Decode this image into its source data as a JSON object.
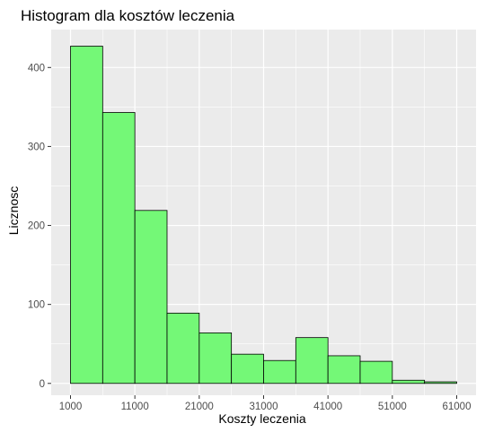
{
  "chart_data": {
    "type": "bar",
    "title": "Histogram dla kosztów leczenia",
    "xlabel": "Koszty leczenia",
    "ylabel": "Licznosc",
    "xlim": [
      -2000,
      64000
    ],
    "ylim": [
      -15,
      448
    ],
    "x_ticks": [
      1000,
      11000,
      21000,
      31000,
      41000,
      51000,
      61000
    ],
    "x_minor_ticks": [
      6000,
      16000,
      26000,
      36000,
      46000,
      56000
    ],
    "y_ticks": [
      0,
      100,
      200,
      300,
      400
    ],
    "y_minor_ticks": [
      50,
      150,
      250,
      350
    ],
    "bin_width": 5000,
    "bins": [
      {
        "x0": 1000,
        "x1": 6000,
        "count": 427
      },
      {
        "x0": 6000,
        "x1": 11000,
        "count": 343
      },
      {
        "x0": 11000,
        "x1": 16000,
        "count": 219
      },
      {
        "x0": 16000,
        "x1": 21000,
        "count": 89
      },
      {
        "x0": 21000,
        "x1": 26000,
        "count": 64
      },
      {
        "x0": 26000,
        "x1": 31000,
        "count": 37
      },
      {
        "x0": 31000,
        "x1": 36000,
        "count": 29
      },
      {
        "x0": 36000,
        "x1": 41000,
        "count": 58
      },
      {
        "x0": 41000,
        "x1": 46000,
        "count": 35
      },
      {
        "x0": 46000,
        "x1": 51000,
        "count": 28
      },
      {
        "x0": 51000,
        "x1": 56000,
        "count": 4
      },
      {
        "x0": 56000,
        "x1": 61000,
        "count": 2
      }
    ],
    "colors": {
      "bar_fill": "#74f877",
      "bar_stroke": "#000000",
      "panel_background": "#ebebeb",
      "grid": "#ffffff"
    },
    "grid": true,
    "legend": "none"
  }
}
